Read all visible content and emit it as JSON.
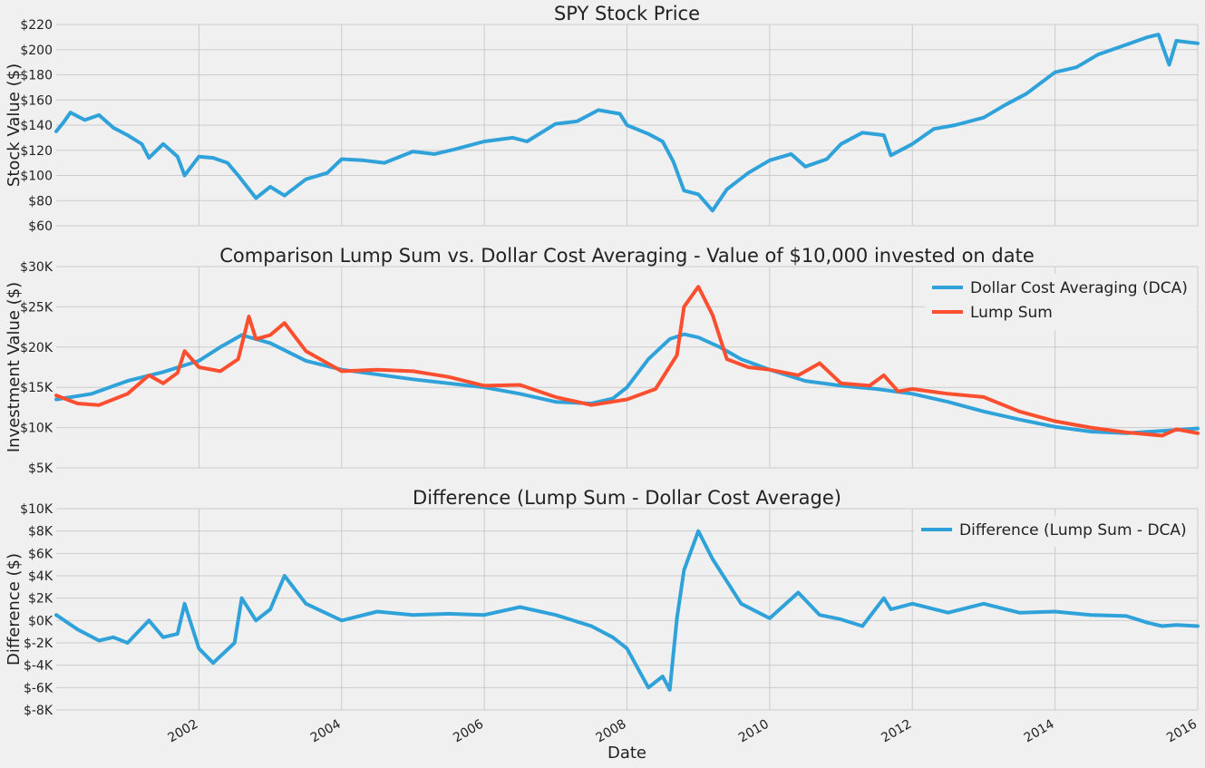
{
  "colors": {
    "blue": "#30a2da",
    "red": "#fc4f30",
    "background": "#f0f0f0",
    "grid": "#cbcbcb"
  },
  "xaxis": {
    "label": "Date",
    "range": [
      2000.0,
      2016.0
    ],
    "ticks": [
      2002,
      2004,
      2006,
      2008,
      2010,
      2012,
      2014,
      2016
    ],
    "tick_labels": [
      "2002",
      "2004",
      "2006",
      "2008",
      "2010",
      "2012",
      "2014",
      "2016"
    ]
  },
  "chart_data": [
    {
      "type": "line",
      "title": "SPY Stock Price",
      "ylabel": "Stock Value ($)",
      "ylim": [
        60,
        220
      ],
      "yticks": [
        60,
        80,
        100,
        120,
        140,
        160,
        180,
        200,
        220
      ],
      "ytick_labels": [
        "$60",
        "$80",
        "$100",
        "$120",
        "$140",
        "$160",
        "$180",
        "$200",
        "$220"
      ],
      "grid": true,
      "series": [
        {
          "color": "#30a2da",
          "x": [
            2000.0,
            2000.1,
            2000.2,
            2000.4,
            2000.6,
            2000.8,
            2001.0,
            2001.2,
            2001.3,
            2001.5,
            2001.7,
            2001.8,
            2002.0,
            2002.2,
            2002.4,
            2002.55,
            2002.8,
            2003.0,
            2003.2,
            2003.5,
            2003.8,
            2004.0,
            2004.3,
            2004.6,
            2005.0,
            2005.3,
            2005.6,
            2006.0,
            2006.4,
            2006.6,
            2007.0,
            2007.3,
            2007.6,
            2007.9,
            2008.0,
            2008.3,
            2008.5,
            2008.65,
            2008.8,
            2009.0,
            2009.2,
            2009.4,
            2009.7,
            2010.0,
            2010.3,
            2010.5,
            2010.8,
            2011.0,
            2011.3,
            2011.6,
            2011.7,
            2012.0,
            2012.3,
            2012.6,
            2013.0,
            2013.3,
            2013.6,
            2014.0,
            2014.3,
            2014.6,
            2015.0,
            2015.3,
            2015.45,
            2015.6,
            2015.7,
            2016.0
          ],
          "y": [
            135,
            142,
            150,
            144,
            148,
            138,
            132,
            125,
            114,
            125,
            115,
            100,
            115,
            114,
            110,
            100,
            82,
            91,
            84,
            97,
            102,
            113,
            112,
            110,
            119,
            117,
            121,
            127,
            130,
            127,
            141,
            143,
            152,
            149,
            140,
            133,
            127,
            111,
            88,
            85,
            72,
            89,
            102,
            112,
            117,
            107,
            113,
            125,
            134,
            132,
            116,
            125,
            137,
            140,
            146,
            156,
            165,
            182,
            186,
            196,
            204,
            210,
            212,
            188,
            207,
            205
          ]
        }
      ]
    },
    {
      "type": "line",
      "title": "Comparison Lump Sum vs. Dollar Cost Averaging - Value of $10,000 invested on date",
      "ylabel": "Investment Value ($)",
      "ylim": [
        5000,
        30000
      ],
      "yticks": [
        5000,
        10000,
        15000,
        20000,
        25000,
        30000
      ],
      "ytick_labels": [
        "$5K",
        "$10K",
        "$15K",
        "$20K",
        "$25K",
        "$30K"
      ],
      "grid": true,
      "legend": "top-right",
      "series": [
        {
          "name": "Dollar Cost Averaging (DCA)",
          "color": "#30a2da",
          "x": [
            2000.0,
            2000.5,
            2001.0,
            2001.5,
            2002.0,
            2002.3,
            2002.6,
            2003.0,
            2003.5,
            2004.0,
            2005.0,
            2006.0,
            2006.5,
            2007.0,
            2007.5,
            2007.8,
            2008.0,
            2008.3,
            2008.6,
            2008.8,
            2009.0,
            2009.3,
            2009.6,
            2010.0,
            2010.5,
            2011.0,
            2011.5,
            2012.0,
            2012.5,
            2013.0,
            2013.5,
            2014.0,
            2014.5,
            2015.0,
            2015.5,
            2016.0
          ],
          "y": [
            13500,
            14200,
            15800,
            16900,
            18300,
            20000,
            21500,
            20500,
            18300,
            17200,
            16000,
            15000,
            14200,
            13200,
            13000,
            13600,
            15000,
            18500,
            21000,
            21600,
            21200,
            20000,
            18500,
            17200,
            15800,
            15200,
            14800,
            14200,
            13200,
            12000,
            11000,
            10100,
            9500,
            9300,
            9600,
            9900
          ]
        },
        {
          "name": "Lump Sum",
          "color": "#fc4f30",
          "x": [
            2000.0,
            2000.3,
            2000.6,
            2001.0,
            2001.3,
            2001.5,
            2001.7,
            2001.8,
            2002.0,
            2002.3,
            2002.55,
            2002.7,
            2002.8,
            2003.0,
            2003.2,
            2003.5,
            2004.0,
            2004.5,
            2005.0,
            2005.5,
            2006.0,
            2006.5,
            2007.0,
            2007.5,
            2008.0,
            2008.4,
            2008.7,
            2008.8,
            2009.0,
            2009.2,
            2009.4,
            2009.7,
            2010.0,
            2010.4,
            2010.7,
            2011.0,
            2011.4,
            2011.6,
            2011.8,
            2012.0,
            2012.5,
            2013.0,
            2013.5,
            2014.0,
            2014.5,
            2015.0,
            2015.5,
            2015.7,
            2016.0
          ],
          "y": [
            14000,
            13000,
            12800,
            14200,
            16500,
            15500,
            16800,
            19500,
            17500,
            17000,
            18500,
            23800,
            21000,
            21500,
            23000,
            19500,
            17000,
            17200,
            17000,
            16300,
            15200,
            15300,
            13800,
            12800,
            13500,
            14800,
            19000,
            25000,
            27500,
            24000,
            18500,
            17500,
            17200,
            16500,
            18000,
            15500,
            15200,
            16500,
            14500,
            14800,
            14200,
            13800,
            12000,
            10800,
            10000,
            9400,
            9000,
            9800,
            9300
          ]
        }
      ]
    },
    {
      "type": "line",
      "title": "Difference (Lump Sum - Dollar Cost Average)",
      "ylabel": "Difference ($)",
      "ylim": [
        -8000,
        10000
      ],
      "yticks": [
        -8000,
        -6000,
        -4000,
        -2000,
        0,
        2000,
        4000,
        6000,
        8000,
        10000
      ],
      "ytick_labels": [
        "$-8K",
        "$-6K",
        "$-4K",
        "$-2K",
        "$0K",
        "$2K",
        "$4K",
        "$6K",
        "$8K",
        "$10K"
      ],
      "grid": true,
      "legend": "top-right",
      "series": [
        {
          "name": "Difference (Lump Sum - DCA)",
          "color": "#30a2da",
          "x": [
            2000.0,
            2000.3,
            2000.6,
            2000.8,
            2001.0,
            2001.3,
            2001.5,
            2001.7,
            2001.8,
            2002.0,
            2002.2,
            2002.5,
            2002.6,
            2002.8,
            2003.0,
            2003.2,
            2003.5,
            2004.0,
            2004.5,
            2005.0,
            2005.5,
            2006.0,
            2006.5,
            2007.0,
            2007.5,
            2007.8,
            2008.0,
            2008.3,
            2008.5,
            2008.6,
            2008.7,
            2008.8,
            2009.0,
            2009.2,
            2009.4,
            2009.6,
            2010.0,
            2010.4,
            2010.7,
            2011.0,
            2011.3,
            2011.6,
            2011.7,
            2012.0,
            2012.5,
            2013.0,
            2013.5,
            2014.0,
            2014.5,
            2015.0,
            2015.3,
            2015.5,
            2015.7,
            2016.0
          ],
          "y": [
            500,
            -800,
            -1800,
            -1500,
            -2000,
            0,
            -1500,
            -1200,
            1500,
            -2500,
            -3800,
            -2000,
            2000,
            0,
            1000,
            4000,
            1500,
            0,
            800,
            500,
            600,
            500,
            1200,
            500,
            -500,
            -1500,
            -2500,
            -6000,
            -5000,
            -6200,
            200,
            4500,
            8000,
            5500,
            3500,
            1500,
            200,
            2500,
            500,
            100,
            -500,
            2000,
            1000,
            1500,
            700,
            1500,
            700,
            800,
            500,
            400,
            -200,
            -500,
            -400,
            -500
          ]
        }
      ]
    }
  ]
}
